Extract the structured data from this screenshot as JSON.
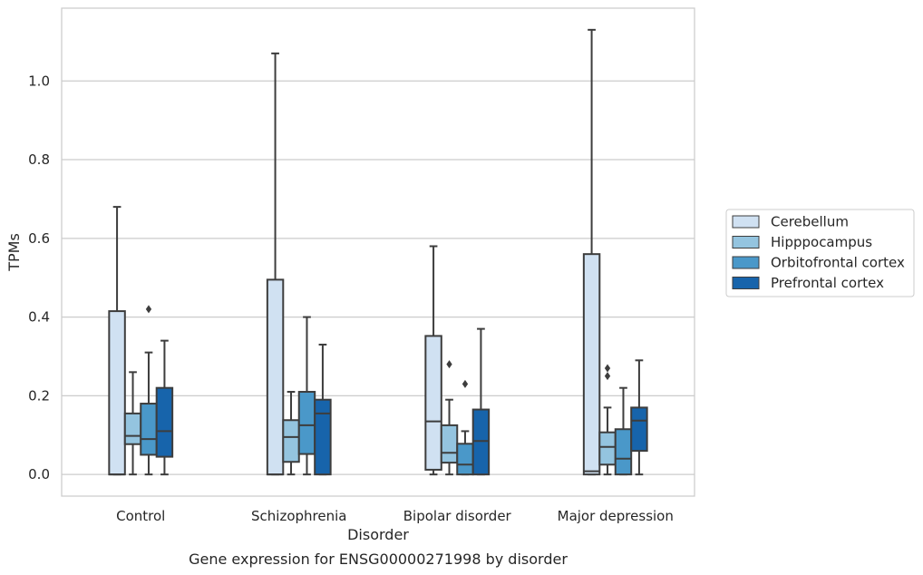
{
  "chart_data": {
    "type": "box",
    "caption": "Gene expression for ENSG00000271998 by disorder",
    "xlabel": "Disorder",
    "ylabel": "TPMs",
    "ylim": [
      -0.055,
      1.185
    ],
    "yticks": [
      "0.0",
      "0.2",
      "0.4",
      "0.6",
      "0.8",
      "1.0"
    ],
    "grid": true,
    "legend_position": "right",
    "categories": [
      "Control",
      "Schizophrenia",
      "Bipolar disorder",
      "Major depression"
    ],
    "series": [
      {
        "name": "Cerebellum",
        "color": "#d0e1f2",
        "boxes": [
          {
            "whisker_low": 0.0,
            "q1": 0.0,
            "median": 0.0,
            "q3": 0.415,
            "whisker_high": 0.68,
            "outliers": []
          },
          {
            "whisker_low": 0.0,
            "q1": 0.0,
            "median": 0.0,
            "q3": 0.495,
            "whisker_high": 1.07,
            "outliers": []
          },
          {
            "whisker_low": 0.0,
            "q1": 0.012,
            "median": 0.135,
            "q3": 0.352,
            "whisker_high": 0.58,
            "outliers": []
          },
          {
            "whisker_low": 0.0,
            "q1": 0.0,
            "median": 0.008,
            "q3": 0.56,
            "whisker_high": 1.13,
            "outliers": []
          }
        ]
      },
      {
        "name": "Hipppocampus",
        "color": "#94c4df",
        "boxes": [
          {
            "whisker_low": 0.0,
            "q1": 0.077,
            "median": 0.098,
            "q3": 0.155,
            "whisker_high": 0.26,
            "outliers": []
          },
          {
            "whisker_low": 0.0,
            "q1": 0.032,
            "median": 0.095,
            "q3": 0.138,
            "whisker_high": 0.21,
            "outliers": []
          },
          {
            "whisker_low": 0.0,
            "q1": 0.03,
            "median": 0.055,
            "q3": 0.125,
            "whisker_high": 0.19,
            "outliers": [
              0.28
            ]
          },
          {
            "whisker_low": 0.0,
            "q1": 0.025,
            "median": 0.07,
            "q3": 0.107,
            "whisker_high": 0.17,
            "outliers": [
              0.25,
              0.27
            ]
          }
        ]
      },
      {
        "name": "Orbitofrontal cortex",
        "color": "#4a98c9",
        "boxes": [
          {
            "whisker_low": 0.0,
            "q1": 0.05,
            "median": 0.09,
            "q3": 0.18,
            "whisker_high": 0.31,
            "outliers": [
              0.42
            ]
          },
          {
            "whisker_low": 0.0,
            "q1": 0.052,
            "median": 0.125,
            "q3": 0.21,
            "whisker_high": 0.4,
            "outliers": []
          },
          {
            "whisker_low": 0.0,
            "q1": 0.0,
            "median": 0.025,
            "q3": 0.078,
            "whisker_high": 0.11,
            "outliers": [
              0.23
            ]
          },
          {
            "whisker_low": 0.0,
            "q1": 0.0,
            "median": 0.04,
            "q3": 0.115,
            "whisker_high": 0.22,
            "outliers": []
          }
        ]
      },
      {
        "name": "Prefrontal cortex",
        "color": "#1764ab",
        "boxes": [
          {
            "whisker_low": 0.0,
            "q1": 0.045,
            "median": 0.11,
            "q3": 0.22,
            "whisker_high": 0.34,
            "outliers": []
          },
          {
            "whisker_low": 0.0,
            "q1": 0.0,
            "median": 0.155,
            "q3": 0.19,
            "whisker_high": 0.33,
            "outliers": []
          },
          {
            "whisker_low": 0.0,
            "q1": 0.0,
            "median": 0.085,
            "q3": 0.165,
            "whisker_high": 0.37,
            "outliers": []
          },
          {
            "whisker_low": 0.0,
            "q1": 0.06,
            "median": 0.137,
            "q3": 0.17,
            "whisker_high": 0.29,
            "outliers": []
          }
        ]
      }
    ]
  }
}
